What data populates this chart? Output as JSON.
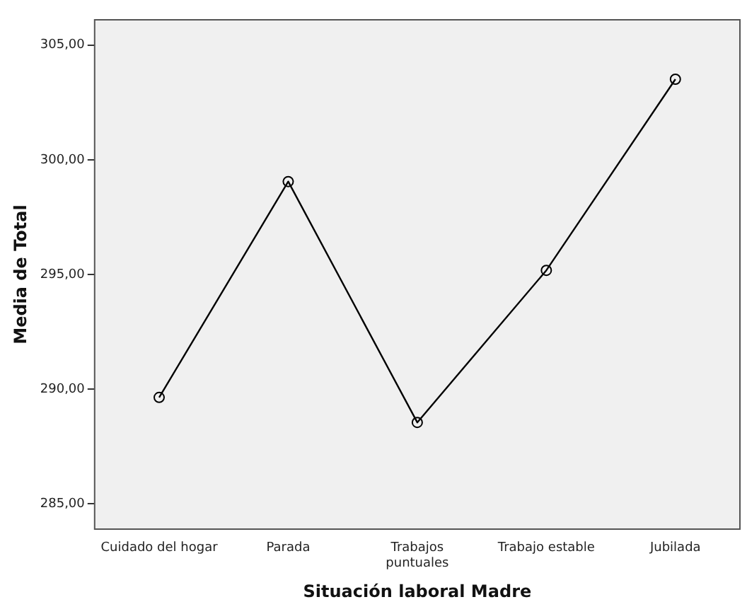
{
  "chart_data": {
    "type": "line",
    "xlabel": "Situación laboral Madre",
    "ylabel": "Media de Total",
    "categories": [
      "Cuidado del hogar",
      "Parada",
      "Trabajos\npuntuales",
      "Trabajo estable",
      "Jubilada"
    ],
    "values": [
      289.64,
      299.05,
      288.55,
      295.18,
      303.51
    ],
    "color": "#000000",
    "marker": "circle",
    "line_style": "solid",
    "grid": false,
    "legend": false,
    "ylim": [
      283.9,
      306.1
    ],
    "yticks": [
      {
        "value": 285,
        "label": "285,00"
      },
      {
        "value": 290,
        "label": "290,00"
      },
      {
        "value": 295,
        "label": "295,00"
      },
      {
        "value": 300,
        "label": "300,00"
      },
      {
        "value": 305,
        "label": "305,00"
      }
    ]
  }
}
